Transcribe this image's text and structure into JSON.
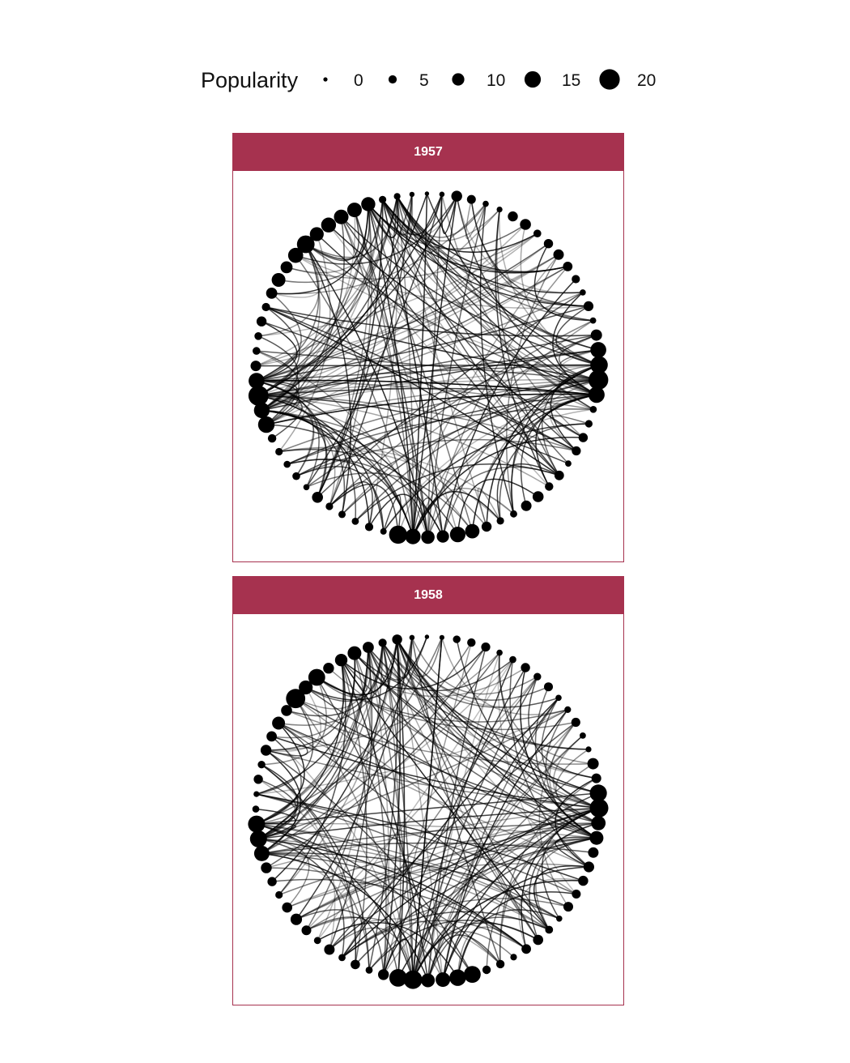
{
  "legend": {
    "title": "Popularity",
    "breaks": [
      0,
      5,
      10,
      15,
      20
    ],
    "labels": [
      "0",
      "5",
      "10",
      "15",
      "20"
    ]
  },
  "chart_data": [
    {
      "type": "network",
      "layout": "circular arc diagram",
      "facet": "1957",
      "node_count": 72,
      "size_variable": "Popularity",
      "node_color": "#000000",
      "edge_color": "#000000"
    },
    {
      "type": "network",
      "layout": "circular arc diagram",
      "facet": "1958",
      "node_count": 72,
      "size_variable": "Popularity",
      "node_color": "#000000",
      "edge_color": "#000000"
    }
  ],
  "colors": {
    "strip_fill": "#a6324f",
    "strip_text": "#ffffff",
    "panel_border": "#a6324f"
  }
}
